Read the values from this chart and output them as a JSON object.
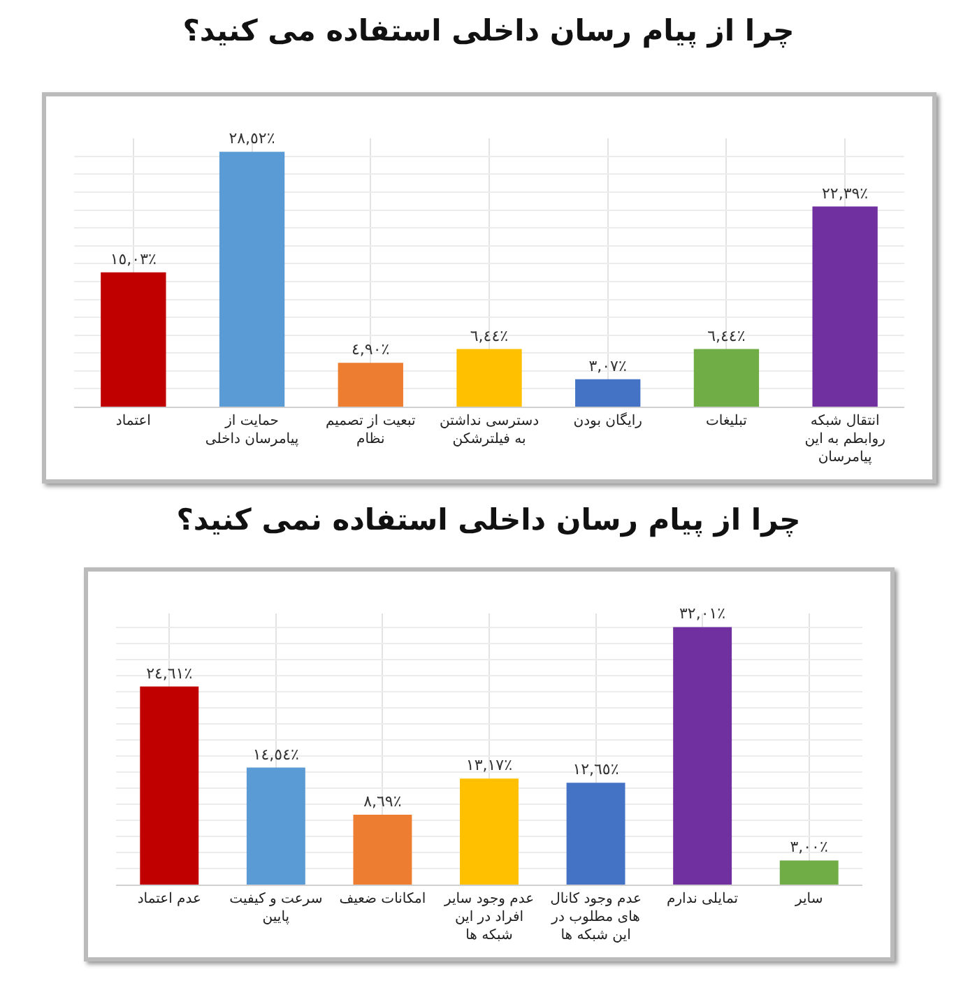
{
  "chart_data": [
    {
      "type": "bar",
      "title": "چرا از پیام رسان داخلی استفاده می کنید؟",
      "categories": [
        "اعتماد",
        "حمایت از پیامرسان داخلی",
        "تبعیت از تصمیم نظام",
        "دسترسی نداشتن به فیلترشکن",
        "رایگان بودن",
        "تبلیغات",
        "انتقال شبکه روابطم به این پیامرسان"
      ],
      "values": [
        15.03,
        28.52,
        4.9,
        6.44,
        3.07,
        6.44,
        22.39
      ],
      "value_labels": [
        "١٥,٠٣٪",
        "٢٨,٥٢٪",
        "٤,٩٠٪",
        "٦,٤٤٪",
        "٣,٠٧٪",
        "٦,٤٤٪",
        "٢٢,٣٩٪"
      ],
      "colors": [
        "#c00000",
        "#5b9bd5",
        "#ed7d31",
        "#ffc000",
        "#4472c4",
        "#70ad47",
        "#7030a0"
      ],
      "grid": true,
      "tick_labels": "x"
    },
    {
      "type": "bar",
      "title": "چرا از پیام رسان داخلی استفاده نمی کنید؟",
      "categories": [
        "عدم اعتماد",
        "سرعت و کیفیت پایین",
        "امکانات ضعیف",
        "عدم وجود سایر افراد در این شبکه ها",
        "عدم وجود کانال های مطلوب در این شبکه ها",
        "تمایلی ندارم",
        "سایر"
      ],
      "values": [
        24.61,
        14.54,
        8.69,
        13.17,
        12.65,
        32.01,
        3.0
      ],
      "value_labels": [
        "٢٤,٦١٪",
        "١٤,٥٤٪",
        "٨,٦٩٪",
        "١٣,١٧٪",
        "١٢,٦٥٪",
        "٣٢,٠١٪",
        "٣,٠٠٪"
      ],
      "colors": [
        "#c00000",
        "#5b9bd5",
        "#ed7d31",
        "#ffc000",
        "#4472c4",
        "#7030a0",
        "#70ad47"
      ],
      "grid": true,
      "tick_labels": "x"
    }
  ]
}
